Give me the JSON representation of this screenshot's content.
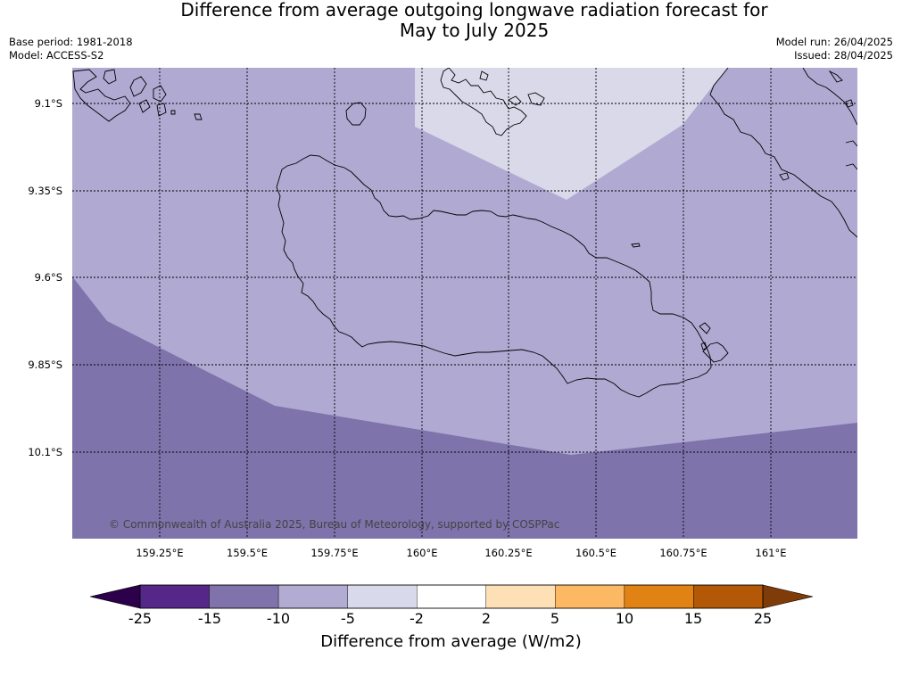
{
  "title_line1": "Difference from average outgoing longwave radiation forecast for",
  "title_line2": "May to July 2025",
  "meta": {
    "base_period": "Base period: 1981-2018",
    "model": "Model: ACCESS-S2",
    "model_run": "Model run: 26/04/2025",
    "issued": "Issued: 28/04/2025"
  },
  "map": {
    "lat_labels": [
      "9.1°S",
      "9.35°S",
      "9.6°S",
      "9.85°S",
      "10.1°S"
    ],
    "lon_labels": [
      "159.25°E",
      "159.5°E",
      "159.75°E",
      "160°E",
      "160.25°E",
      "160.5°E",
      "160.75°E",
      "161°E"
    ],
    "copyright": "© Commonwealth of Australia 2025, Bureau of Meteorology, supported by COSPPac",
    "colors": {
      "below_minus10": "#7f73ab",
      "minus10_to_minus5": "#b0a9d2",
      "minus5_to_minus2": "#d9d9ea",
      "coast": "#000000",
      "grid": "#000000"
    }
  },
  "colorbar": {
    "ticks": [
      "-25",
      "-15",
      "-10",
      "-5",
      "-2",
      "2",
      "5",
      "10",
      "15",
      "25"
    ],
    "colors": [
      "#542788",
      "#8073ac",
      "#b2abd2",
      "#d8daeb",
      "#ffffff",
      "#fee0b6",
      "#fdb863",
      "#e08214",
      "#b35806"
    ],
    "under_color": "#2d004b",
    "over_color": "#7f3b08",
    "label": "Difference from average (W/m2)"
  }
}
